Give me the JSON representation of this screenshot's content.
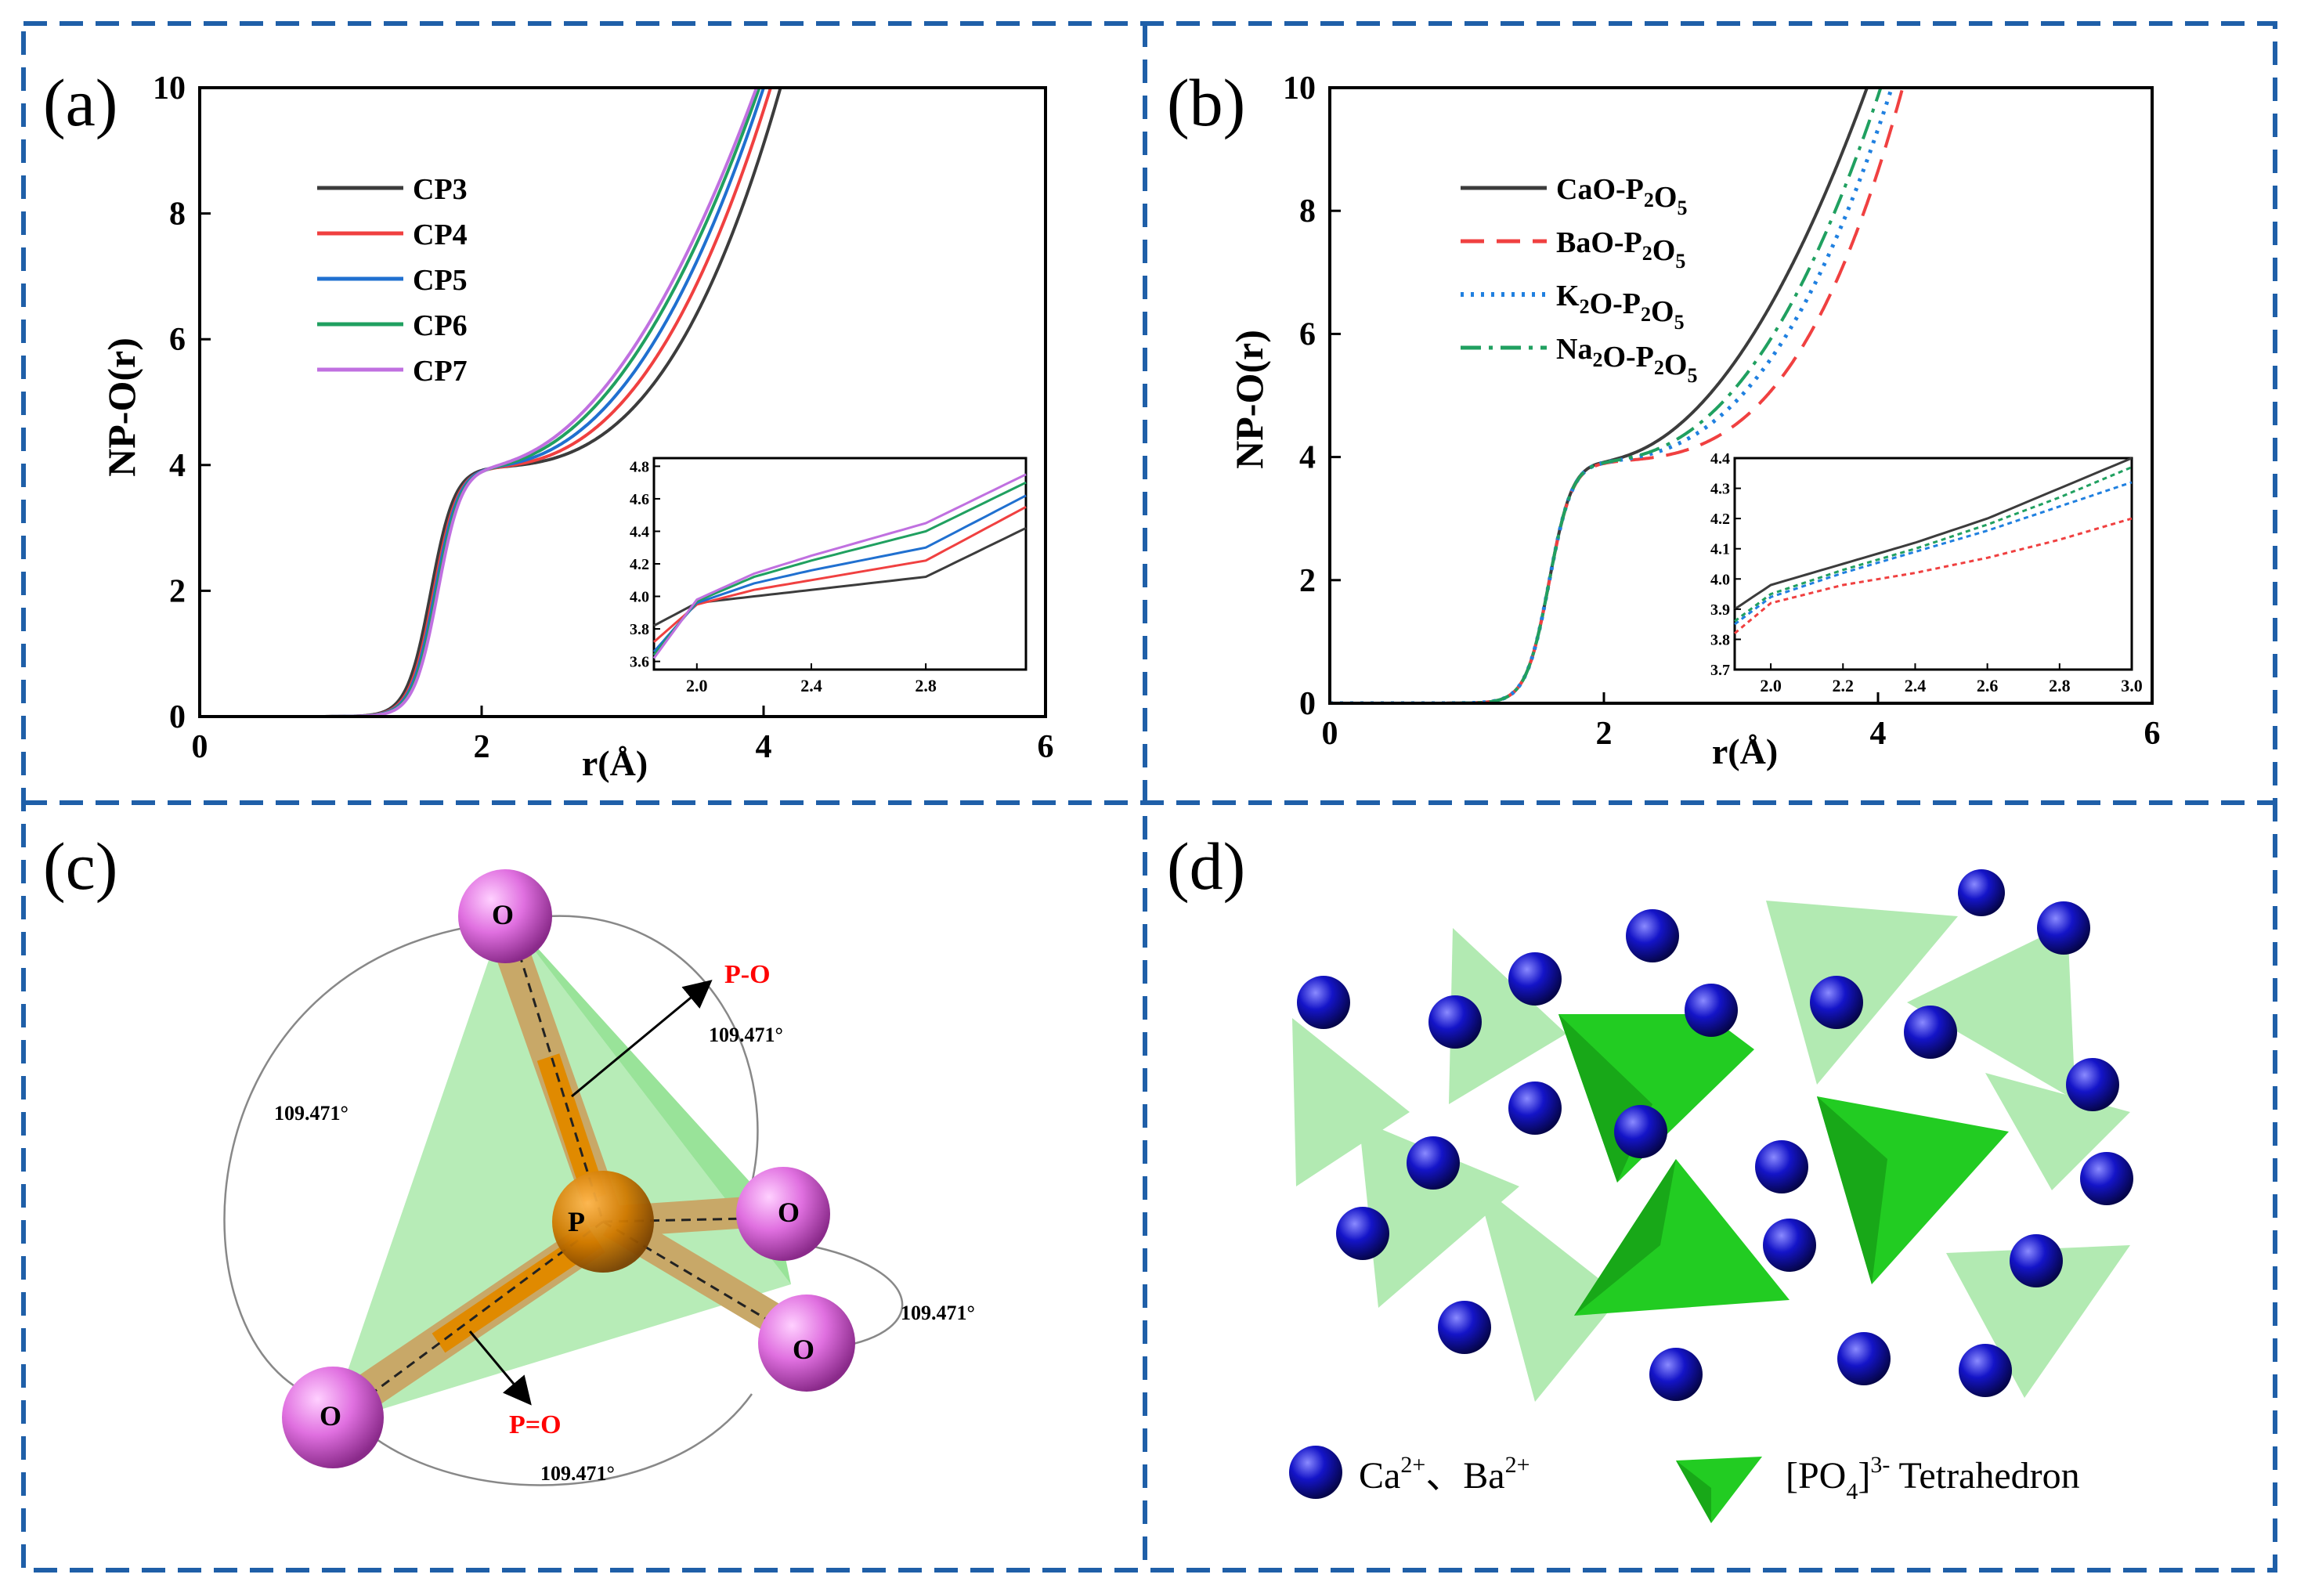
{
  "panel_labels": {
    "a": "(a)",
    "b": "(b)",
    "c": "(c)",
    "d": "(d)"
  },
  "colors": {
    "frame": "#1f5fa8",
    "tetra_dark": "#22cc22",
    "tetra_light": "#9fe59f",
    "ion": "#1414c8",
    "oxygen": "#e070e0",
    "phosphorus": "#e08a00",
    "bond_label": "#ff0000"
  },
  "chart_data": [
    {
      "id": "a",
      "type": "line",
      "xlabel": "r(Å)",
      "ylabel": "NP-O(r)",
      "xlim": [
        0,
        6
      ],
      "ylim": [
        0,
        10
      ],
      "xticks": [
        "0",
        "2",
        "4",
        "6"
      ],
      "yticks": [
        "0",
        "2",
        "4",
        "6",
        "8",
        "10"
      ],
      "legend": "upper-left",
      "series": [
        {
          "name": "CP3",
          "color": "#3c3c3c",
          "dash": "solid",
          "r_rise": 1.64,
          "plateau": 3.97,
          "slope": 0.05,
          "p": 2.8,
          "r_exit": 4.12,
          "inset_y": [
            3.82,
            3.96,
            4.0,
            4.04,
            4.12,
            4.42
          ]
        },
        {
          "name": "CP4",
          "color": "#f04040",
          "dash": "solid",
          "r_rise": 1.66,
          "plateau": 3.97,
          "slope": 0.05,
          "p": 2.5,
          "r_exit": 4.05,
          "inset_y": [
            3.72,
            3.95,
            4.04,
            4.1,
            4.22,
            4.55
          ]
        },
        {
          "name": "CP5",
          "color": "#2070d0",
          "dash": "solid",
          "r_rise": 1.67,
          "plateau": 3.98,
          "slope": 0.06,
          "p": 2.3,
          "r_exit": 4.0,
          "inset_y": [
            3.66,
            3.96,
            4.08,
            4.16,
            4.3,
            4.62
          ]
        },
        {
          "name": "CP6",
          "color": "#20a060",
          "dash": "solid",
          "r_rise": 1.68,
          "plateau": 3.98,
          "slope": 0.07,
          "p": 2.1,
          "r_exit": 3.97,
          "inset_y": [
            3.64,
            3.97,
            4.12,
            4.22,
            4.4,
            4.7
          ]
        },
        {
          "name": "CP7",
          "color": "#c070e0",
          "dash": "solid",
          "r_rise": 1.69,
          "plateau": 3.99,
          "slope": 0.08,
          "p": 2.0,
          "r_exit": 3.95,
          "inset_y": [
            3.62,
            3.98,
            4.14,
            4.25,
            4.45,
            4.75
          ]
        }
      ],
      "inset": {
        "x": [
          1.85,
          2.0,
          2.2,
          2.4,
          2.8,
          3.15
        ],
        "xlim": [
          1.85,
          3.15
        ],
        "ylim": [
          3.55,
          4.85
        ],
        "xticks": [
          "2.0",
          "2.4",
          "2.8"
        ],
        "yticks": [
          "3.6",
          "3.8",
          "4.0",
          "4.2",
          "4.4",
          "4.6",
          "4.8"
        ]
      }
    },
    {
      "id": "b",
      "type": "line",
      "xlabel": "r(Å)",
      "ylabel": "NP-O(r)",
      "xlim": [
        0,
        6
      ],
      "ylim": [
        0,
        10
      ],
      "xticks": [
        "0",
        "2",
        "4",
        "6"
      ],
      "yticks": [
        "0",
        "2",
        "4",
        "6",
        "8",
        "10"
      ],
      "legend": "upper-left",
      "series": [
        {
          "name": "CaO-P2O5",
          "name_parts": [
            "CaO-P",
            "2",
            "O",
            "5",
            ""
          ],
          "color": "#3c3c3c",
          "dash": "solid",
          "r_rise": 1.6,
          "plateau": 3.95,
          "slope": 0.2,
          "p": 2.0,
          "r_exit": 3.92,
          "inset_y": [
            3.9,
            3.98,
            4.05,
            4.12,
            4.2,
            4.3,
            4.4
          ]
        },
        {
          "name": "BaO-P2O5",
          "name_parts": [
            "BaO-P",
            "2",
            "O",
            "5",
            ""
          ],
          "color": "#f04040",
          "dash": "long-dash",
          "r_rise": 1.6,
          "plateau": 3.93,
          "slope": 0.1,
          "p": 3.0,
          "r_exit": 4.18,
          "inset_y": [
            3.82,
            3.92,
            3.98,
            4.02,
            4.07,
            4.13,
            4.2
          ]
        },
        {
          "name": "K2O-P2O5",
          "name_parts": [
            "K",
            "2",
            "O-P",
            "2",
            "O5"
          ],
          "color": "#2080e0",
          "dash": "dotted",
          "r_rise": 1.6,
          "plateau": 3.94,
          "slope": 0.15,
          "p": 2.5,
          "r_exit": 4.1,
          "inset_y": [
            3.85,
            3.94,
            4.02,
            4.09,
            4.16,
            4.24,
            4.32
          ]
        },
        {
          "name": "Na2O-P2O5",
          "name_parts": [
            "Na",
            "2",
            "O-P",
            "2",
            "O5"
          ],
          "color": "#20a060",
          "dash": "dash-dot",
          "r_rise": 1.6,
          "plateau": 3.94,
          "slope": 0.15,
          "p": 2.3,
          "r_exit": 4.02,
          "inset_y": [
            3.86,
            3.95,
            4.03,
            4.1,
            4.18,
            4.27,
            4.37
          ]
        }
      ],
      "inset": {
        "x": [
          1.9,
          2.0,
          2.2,
          2.4,
          2.6,
          2.8,
          3.0
        ],
        "xlim": [
          1.9,
          3.0
        ],
        "ylim": [
          3.7,
          4.4
        ],
        "xticks": [
          "2.0",
          "2.2",
          "2.4",
          "2.6",
          "2.8",
          "3.0"
        ],
        "yticks": [
          "3.7",
          "3.8",
          "3.9",
          "4.0",
          "4.1",
          "4.2",
          "4.3",
          "4.4"
        ]
      }
    }
  ],
  "panel_c": {
    "atom_P": "P",
    "atom_O": "O",
    "bond_PO": "P-O",
    "bond_PdO": "P=O",
    "angle": "109.471°"
  },
  "panel_d": {
    "legend_ions": "Ca",
    "ions_sup1": "2+",
    "ions_sep": "、Ba",
    "ions_sup2": "2+",
    "legend_tetra_pre": "[PO",
    "tetra_sub": "4",
    "tetra_mid": "]",
    "tetra_sup": "3-",
    "legend_tetra_post": " Tetrahedron"
  }
}
